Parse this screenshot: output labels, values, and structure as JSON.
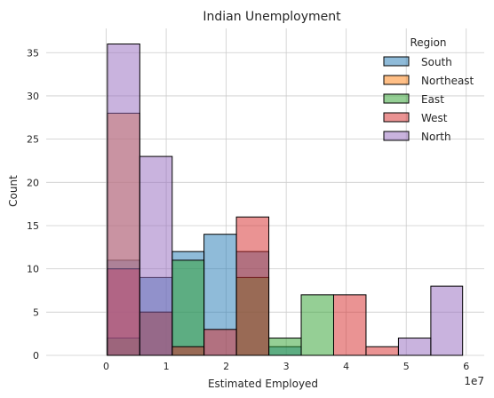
{
  "chart_data": {
    "type": "histogram",
    "title": "Indian Unemployment",
    "xlabel": "Estimated Employed",
    "ylabel": "Count",
    "x_offset_label": "1e7",
    "xlim": [
      -1.0,
      6.3
    ],
    "ylim": [
      0,
      37.8
    ],
    "xticks": [
      0,
      1,
      2,
      3,
      4,
      5,
      6
    ],
    "xtick_labels": [
      "0",
      "1",
      "2",
      "3",
      "4",
      "5",
      "6"
    ],
    "yticks": [
      0,
      5,
      10,
      15,
      20,
      25,
      30,
      35
    ],
    "ytick_labels": [
      "0",
      "5",
      "10",
      "15",
      "20",
      "25",
      "30",
      "35"
    ],
    "grid": true,
    "legend_title": "Region",
    "legend_position": "top-right",
    "bin_edges": [
      0.02,
      0.56,
      1.1,
      1.63,
      2.17,
      2.71,
      3.25,
      3.79,
      4.33,
      4.87,
      5.41,
      5.94
    ],
    "series": [
      {
        "name": "South",
        "color": "#1f77b4",
        "values": [
          11,
          9,
          12,
          14,
          12,
          1,
          0,
          0,
          0,
          0,
          0
        ]
      },
      {
        "name": "Northeast",
        "color": "#ff7f0e",
        "values": [
          28,
          0,
          0,
          0,
          0,
          0,
          0,
          0,
          0,
          0,
          0
        ]
      },
      {
        "name": "East",
        "color": "#2ca02c",
        "values": [
          2,
          5,
          11,
          0,
          9,
          2,
          7,
          0,
          0,
          0,
          0
        ]
      },
      {
        "name": "West",
        "color": "#d62728",
        "values": [
          10,
          5,
          1,
          3,
          16,
          0,
          0,
          7,
          1,
          0,
          0
        ]
      },
      {
        "name": "North",
        "color": "#9467bd",
        "values": [
          36,
          23,
          0,
          0,
          0,
          0,
          0,
          0,
          0,
          2,
          8
        ]
      }
    ]
  }
}
